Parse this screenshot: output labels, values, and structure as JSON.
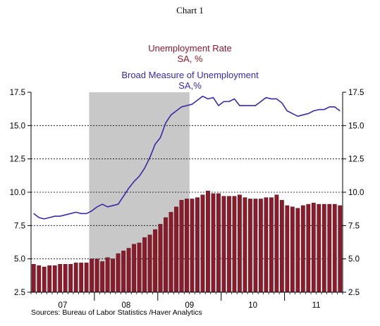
{
  "chart_label": "Chart 1",
  "colors": {
    "rate": "#8b1a2b",
    "broad": "#3a2aa8",
    "recession": "#c8c8c8"
  },
  "chart_data": {
    "type": "bar+line",
    "series": [
      {
        "name": "Unemployment Rate",
        "unit": "SA, %",
        "kind": "bar",
        "color": "#8b1a2b",
        "values": [
          4.6,
          4.5,
          4.4,
          4.5,
          4.5,
          4.6,
          4.6,
          4.6,
          4.7,
          4.7,
          4.7,
          5.0,
          5.0,
          4.8,
          5.1,
          5.0,
          5.4,
          5.6,
          5.8,
          6.1,
          6.2,
          6.6,
          6.8,
          7.2,
          7.6,
          8.1,
          8.5,
          8.9,
          9.4,
          9.5,
          9.5,
          9.6,
          9.8,
          10.1,
          9.9,
          9.9,
          9.7,
          9.7,
          9.7,
          9.8,
          9.6,
          9.5,
          9.5,
          9.5,
          9.6,
          9.6,
          9.8,
          9.4,
          9.0,
          8.9,
          8.8,
          9.0,
          9.1,
          9.2,
          9.1,
          9.1,
          9.1,
          9.1,
          9.0
        ]
      },
      {
        "name": "Broad Measure of Unemployment",
        "unit": "SA,%",
        "kind": "line",
        "color": "#3a2aa8",
        "values": [
          8.4,
          8.1,
          8.0,
          8.1,
          8.2,
          8.2,
          8.3,
          8.4,
          8.5,
          8.4,
          8.4,
          8.6,
          8.9,
          9.1,
          8.9,
          9.0,
          9.1,
          9.7,
          10.3,
          10.8,
          11.2,
          11.8,
          12.6,
          13.6,
          14.1,
          15.2,
          15.8,
          16.1,
          16.4,
          16.5,
          16.6,
          16.9,
          17.2,
          17.0,
          17.1,
          16.5,
          16.8,
          16.8,
          17.0,
          16.5,
          16.5,
          16.5,
          16.5,
          16.8,
          17.1,
          17.0,
          17.0,
          16.7,
          16.1,
          15.9,
          15.7,
          15.8,
          15.9,
          16.1,
          16.2,
          16.2,
          16.4,
          16.4,
          16.1
        ]
      }
    ],
    "recession_shade": {
      "start_index": 11,
      "end_index": 29
    },
    "x_labels": [
      {
        "label": "07",
        "index": 5.5
      },
      {
        "label": "08",
        "index": 17.5
      },
      {
        "label": "09",
        "index": 29.5
      },
      {
        "label": "10",
        "index": 41.5
      },
      {
        "label": "11",
        "index": 53.5
      }
    ],
    "year_ticks": [
      11.5,
      23.5,
      35.5,
      47.5
    ],
    "y_ticks": [
      "2.5",
      "5.0",
      "7.5",
      "10.0",
      "12.5",
      "15.0",
      "17.5"
    ],
    "ylim": [
      2.5,
      17.5
    ],
    "grid": "y-dashed",
    "n_months": 59
  },
  "sources": "Sources:  Bureau of Labor Statistics /Haver Analytics"
}
